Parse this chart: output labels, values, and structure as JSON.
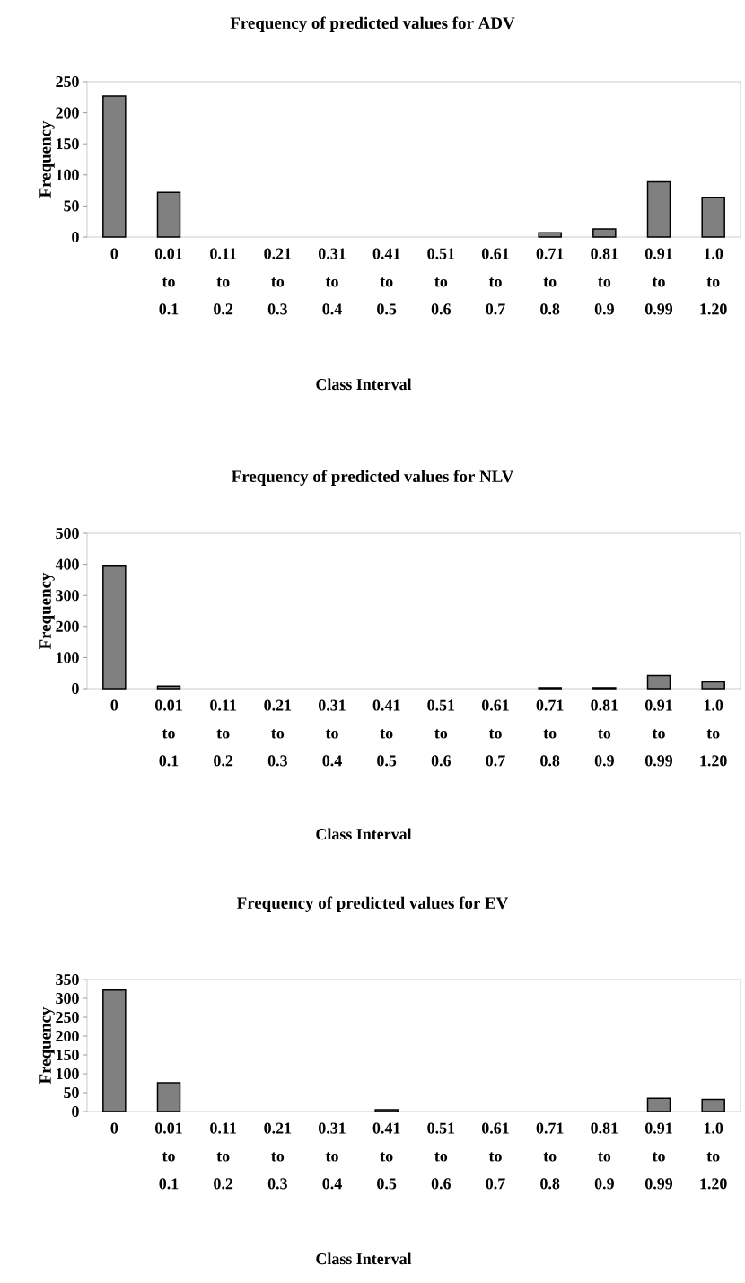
{
  "chart_data": [
    {
      "type": "bar",
      "title": "Frequency of predicted values for ADV",
      "xlabel": "Class Interval",
      "ylabel": "Frequency",
      "categories": [
        "0",
        "0.01 to 0.1",
        "0.11 to 0.2",
        "0.21 to 0.3",
        "0.31 to 0.4",
        "0.41 to 0.5",
        "0.51 to 0.6",
        "0.61 to 0.7",
        "0.71 to 0.8",
        "0.81 to 0.9",
        "0.91 to 0.99",
        "1.0 to 1.20"
      ],
      "values": [
        227,
        72,
        0,
        0,
        0,
        0,
        0,
        0,
        7,
        13,
        89,
        64
      ],
      "color": "#808080",
      "ylim": [
        0,
        250
      ],
      "yticks": [
        0,
        50,
        100,
        150,
        200,
        250
      ]
    },
    {
      "type": "bar",
      "title": "Frequency of predicted values for NLV",
      "xlabel": "Class Interval",
      "ylabel": "Frequency",
      "categories": [
        "0",
        "0.01 to 0.1",
        "0.11 to 0.2",
        "0.21 to 0.3",
        "0.31 to 0.4",
        "0.41 to 0.5",
        "0.51 to 0.6",
        "0.61 to 0.7",
        "0.71 to 0.8",
        "0.81 to 0.9",
        "0.91 to 0.99",
        "1.0 to 1.20"
      ],
      "values": [
        397,
        8,
        0,
        0,
        0,
        0,
        0,
        0,
        3,
        3,
        42,
        22
      ],
      "color": "#808080",
      "ylim": [
        0,
        500
      ],
      "yticks": [
        0,
        100,
        200,
        300,
        400,
        500
      ]
    },
    {
      "type": "bar",
      "title": "Frequency of predicted values for EV",
      "xlabel": "Class Interval",
      "ylabel": "Frequency",
      "categories": [
        "0",
        "0.01 to 0.1",
        "0.11 to 0.2",
        "0.21 to 0.3",
        "0.31 to 0.4",
        "0.41 to 0.5",
        "0.51 to 0.6",
        "0.61 to 0.7",
        "0.71 to 0.8",
        "0.81 to 0.9",
        "0.91 to 0.99",
        "1.0 to 1.20"
      ],
      "values": [
        322,
        76,
        0,
        0,
        0,
        5,
        0,
        0,
        0,
        0,
        35,
        32
      ],
      "color": "#808080",
      "ylim": [
        0,
        350
      ],
      "yticks": [
        0,
        50,
        100,
        150,
        200,
        250,
        300,
        350
      ]
    }
  ]
}
